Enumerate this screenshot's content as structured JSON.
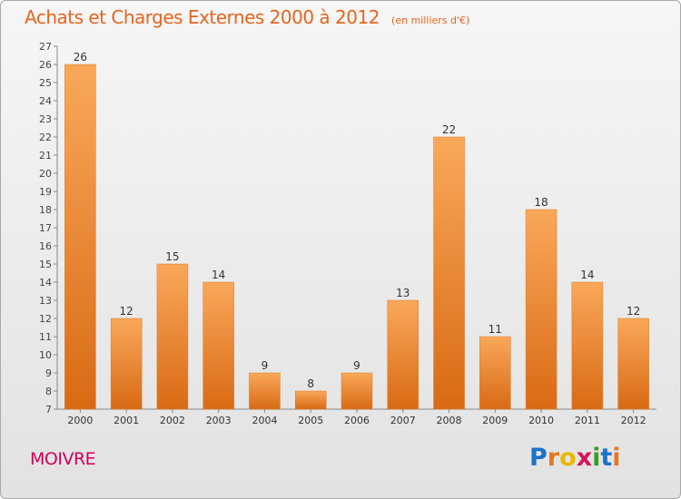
{
  "title": "Achats et Charges Externes 2000 à 2012",
  "subtitle": "(en milliers d'€)",
  "commune": "MOIVRE",
  "logo": {
    "name": "Proxiti",
    "letters": [
      "P",
      "r",
      "o",
      "x",
      "i",
      "t",
      "i"
    ]
  },
  "colors": {
    "bar": "#f0892e",
    "bar_top": "#f9a85a",
    "bar_bottom": "#d96a14",
    "title": "#e8641e",
    "commune": "#d2005a"
  },
  "chart_data": {
    "type": "bar",
    "categories": [
      "2000",
      "2001",
      "2002",
      "2003",
      "2004",
      "2005",
      "2006",
      "2007",
      "2008",
      "2009",
      "2010",
      "2011",
      "2012"
    ],
    "values": [
      26,
      12,
      15,
      14,
      9,
      8,
      9,
      13,
      22,
      11,
      18,
      14,
      12
    ],
    "ylim": [
      7,
      27
    ],
    "yticks": [
      7,
      8,
      9,
      10,
      11,
      12,
      13,
      14,
      15,
      16,
      17,
      18,
      19,
      20,
      21,
      22,
      23,
      24,
      25,
      26,
      27
    ],
    "grid": false,
    "data_labels": true
  }
}
